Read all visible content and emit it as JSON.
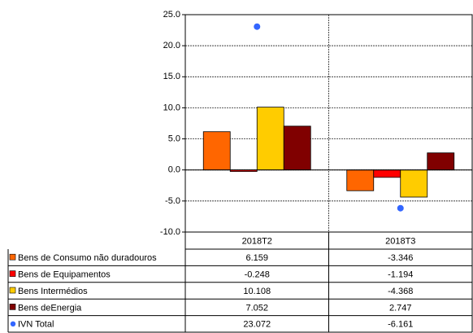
{
  "chart_data": {
    "type": "bar",
    "categories": [
      "2018T2",
      "2018T3"
    ],
    "series": [
      {
        "name": "Bens de Consumo não duradouros",
        "color": "#ff6600",
        "values": [
          6.159,
          -3.346
        ]
      },
      {
        "name": "Bens de Equipamentos",
        "color": "#ff0000",
        "values": [
          -0.248,
          -1.194
        ]
      },
      {
        "name": "Bens Intermédios",
        "color": "#ffcc00",
        "values": [
          10.108,
          -4.368
        ]
      },
      {
        "name": "Bens deEnergia",
        "color": "#800000",
        "values": [
          7.052,
          2.747
        ]
      },
      {
        "name": "IVN Total",
        "color": "#3366ff",
        "type": "scatter",
        "values": [
          23.072,
          -6.161
        ]
      }
    ],
    "ylim": [
      -10,
      25
    ],
    "yticks": [
      {
        "value": -10,
        "label": "-10.0"
      },
      {
        "value": -5,
        "label": "-5.0"
      },
      {
        "value": 0,
        "label": "0.0"
      },
      {
        "value": 5,
        "label": "5.0"
      },
      {
        "value": 10,
        "label": "10.0"
      },
      {
        "value": 15,
        "label": "15.0"
      },
      {
        "value": 20,
        "label": "20.0"
      },
      {
        "value": 25,
        "label": "25.0"
      }
    ],
    "grid": true
  }
}
